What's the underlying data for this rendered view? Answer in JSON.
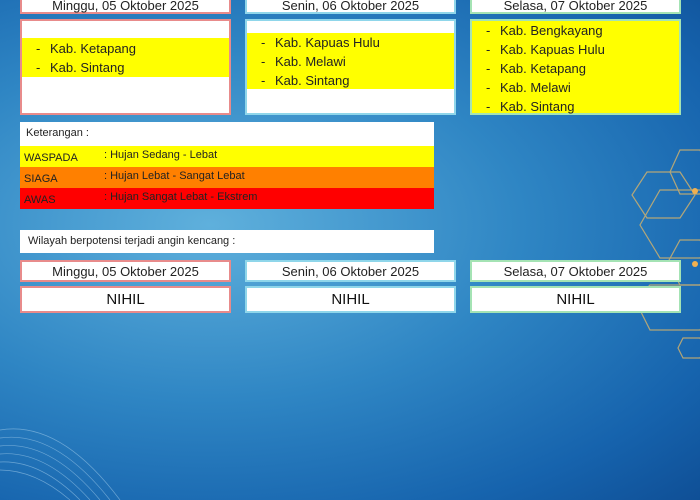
{
  "rain_forecast": [
    {
      "date": "Minggu, 05 Oktober 2025",
      "areas": [
        "Kab. Ketapang",
        "Kab. Sintang"
      ]
    },
    {
      "date": "Senin, 06 Oktober 2025",
      "areas": [
        "Kab. Kapuas Hulu",
        "Kab. Melawi",
        "Kab. Sintang"
      ]
    },
    {
      "date": "Selasa, 07 Oktober 2025",
      "areas": [
        "Kab. Bengkayang",
        "Kab. Kapuas Hulu",
        "Kab. Ketapang",
        "Kab. Melawi",
        "Kab. Sintang"
      ]
    }
  ],
  "legend": {
    "title": "Keterangan :",
    "levels": [
      {
        "name": "WASPADA",
        "desc": ": Hujan Sedang - Lebat",
        "color": "#ffff00"
      },
      {
        "name": "SIAGA",
        "desc": ": Hujan Lebat - Sangat Lebat",
        "color": "#ff8000"
      },
      {
        "name": "AWAS",
        "desc": ": Hujan Sangat Lebat - Ekstrem",
        "color": "#ff0000"
      }
    ]
  },
  "wind": {
    "label": "Wilayah berpotensi terjadi angin kencang :",
    "days": [
      {
        "date": "Minggu, 05 Oktober 2025",
        "value": "NIHIL"
      },
      {
        "date": "Senin, 06 Oktober 2025",
        "value": "NIHIL"
      },
      {
        "date": "Selasa, 07 Oktober 2025",
        "value": "NIHIL"
      }
    ]
  }
}
